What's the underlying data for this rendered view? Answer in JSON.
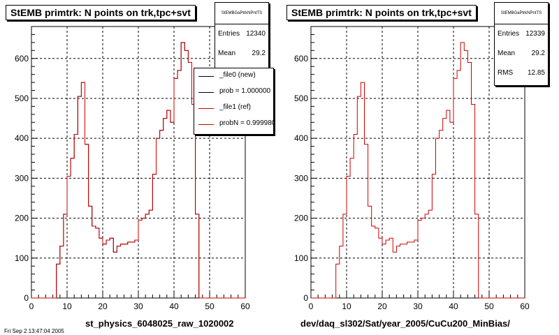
{
  "chart_data": [
    {
      "type": "histogram",
      "title": "StEMB primtrk: N points on trk,tpc+svt",
      "xlabel": "st_physics_6048025_raw_1020002",
      "xlim": [
        0,
        60
      ],
      "ylim": [
        0,
        680
      ],
      "xticks": [
        0,
        10,
        20,
        30,
        40,
        50,
        60
      ],
      "yticks": [
        0,
        100,
        200,
        300,
        400,
        500,
        600
      ],
      "grid": true,
      "stats": {
        "header": "StEMBGaPtrkNPntTS",
        "entries": "12340",
        "mean": "29.2"
      },
      "legend": [
        {
          "label": "_file0 (new)",
          "color": "#000000"
        },
        {
          "label": "prob = 1.000000",
          "color": "#000000"
        },
        {
          "label": "_file1 (ref)",
          "color": "#cc0000"
        },
        {
          "label": "probN = 0.999980",
          "color": "#cc0000"
        }
      ],
      "series": [
        {
          "name": "_file1 (ref)",
          "color": "#cc0000",
          "bin_width": 1,
          "x_start": 0,
          "values": [
            0,
            0,
            0,
            0,
            0,
            0,
            0,
            85,
            130,
            210,
            305,
            350,
            410,
            505,
            540,
            385,
            230,
            180,
            175,
            150,
            135,
            145,
            150,
            115,
            130,
            135,
            135,
            140,
            140,
            145,
            195,
            200,
            210,
            220,
            310,
            400,
            420,
            450,
            470,
            440,
            550,
            570,
            640,
            620,
            590,
            485,
            210,
            0,
            0,
            0,
            0,
            0,
            0,
            0,
            0,
            0,
            0,
            0,
            0,
            0
          ]
        },
        {
          "name": "_file0 (new)",
          "color": "#000000",
          "bin_width": 1,
          "x_start": 0,
          "values": [
            0,
            0,
            0,
            0,
            0,
            0,
            0,
            85,
            130,
            210,
            305,
            350,
            410,
            505,
            540,
            385,
            230,
            180,
            175,
            150,
            135,
            145,
            150,
            115,
            130,
            135,
            135,
            140,
            140,
            145,
            195,
            200,
            210,
            220,
            310,
            400,
            420,
            450,
            470,
            440,
            550,
            570,
            640,
            620,
            590,
            485,
            210,
            0,
            0,
            0,
            0,
            0,
            0,
            0,
            0,
            0,
            0,
            0,
            0,
            0
          ]
        }
      ]
    },
    {
      "type": "histogram",
      "title": "StEMB primtrk: N points on trk,tpc+svt",
      "xlabel": "dev/daq_sl302/Sat/year_2005/CuCu200_MinBias/",
      "xlim": [
        0,
        60
      ],
      "ylim": [
        0,
        680
      ],
      "xticks": [
        0,
        10,
        20,
        30,
        40,
        50,
        60
      ],
      "yticks": [
        0,
        100,
        200,
        300,
        400,
        500,
        600
      ],
      "grid": true,
      "stats": {
        "header": "StEMBGaPtrkNPntTS",
        "entries": "12339",
        "mean": "29.2",
        "rms": "12.85"
      },
      "series": [
        {
          "name": "",
          "color": "#cc0000",
          "bin_width": 1,
          "x_start": 0,
          "values": [
            0,
            0,
            0,
            0,
            0,
            0,
            0,
            85,
            130,
            210,
            305,
            350,
            410,
            505,
            540,
            385,
            230,
            180,
            175,
            150,
            135,
            145,
            150,
            115,
            130,
            135,
            135,
            140,
            140,
            145,
            195,
            200,
            210,
            220,
            310,
            400,
            420,
            450,
            470,
            440,
            550,
            570,
            640,
            620,
            590,
            485,
            210,
            0,
            0,
            0,
            0,
            0,
            0,
            0,
            0,
            0,
            0,
            0,
            0,
            0
          ]
        }
      ]
    }
  ],
  "labels": {
    "entries": "Entries",
    "mean": "Mean",
    "rms": "RMS"
  },
  "footer": "Fri Sep  2 13:47:04 2005"
}
